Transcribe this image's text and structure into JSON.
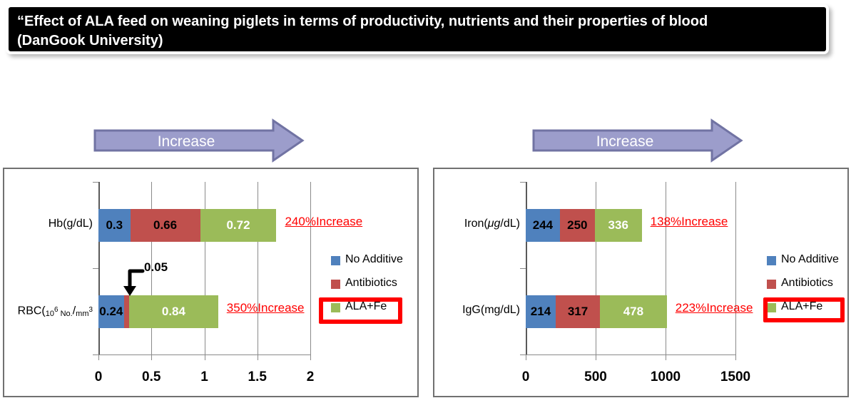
{
  "slide_title": {
    "line1": "“Effect of ALA feed on weaning piglets in terms of productivity, nutrients and their properties of blood",
    "line2": "(DanGook University)"
  },
  "increase_arrow_label": "Increase",
  "colors": {
    "no_additive_blue": "#4F81BD",
    "antibiotics_red": "#C0504D",
    "ala_fe_green": "#9BBB59",
    "callout_red": "#FF0000",
    "arrow_fill": "#9C9DCB",
    "arrow_stroke": "#7173A3"
  },
  "legend": {
    "items": [
      {
        "label": "No Additive",
        "color": "#4F81BD",
        "highlighted": false
      },
      {
        "label": "Antibiotics",
        "color": "#C0504D",
        "highlighted": false
      },
      {
        "label": "ALA+Fe",
        "color": "#9BBB59",
        "highlighted": true
      }
    ]
  },
  "chart_data": [
    {
      "type": "bar",
      "orientation": "horizontal-stacked",
      "categories": [
        "Hb(g/dL)",
        "RBC(10⁶ No./mm³"
      ],
      "categories_rich": [
        [
          {
            "t": "Hb(g/dL)"
          }
        ],
        [
          {
            "t": "RBC("
          },
          {
            "t": "10",
            "small": true
          },
          {
            "t": "6",
            "small": true,
            "sup": true
          },
          {
            "t": " No.",
            "small": true
          },
          {
            "t": "/"
          },
          {
            "t": "mm",
            "small": true
          },
          {
            "t": "3",
            "small": true,
            "sup": true
          }
        ]
      ],
      "series": [
        {
          "name": "No Additive",
          "color": "#4F81BD",
          "value_label_color": "#000000",
          "values": [
            0.3,
            0.24
          ]
        },
        {
          "name": "Antibiotics",
          "color": "#C0504D",
          "value_label_color": "#000000",
          "values": [
            0.66,
            0.05
          ]
        },
        {
          "name": "ALA+Fe",
          "color": "#9BBB59",
          "value_label_color": "#FFFFFF",
          "values": [
            0.72,
            0.84
          ]
        }
      ],
      "x_ticks": [
        "0",
        "0.5",
        "1",
        "1.5",
        "2"
      ],
      "x_tick_values": [
        0,
        0.5,
        1,
        1.5,
        2
      ],
      "xlim": [
        0,
        2
      ],
      "grid": true,
      "legend_position": "right",
      "row_callouts": [
        "240%Increase",
        "350%Increase"
      ],
      "annotations": [
        {
          "text": "0.05",
          "refers_to": "Antibiotics segment of RBC row"
        }
      ]
    },
    {
      "type": "bar",
      "orientation": "horizontal-stacked",
      "categories": [
        "Iron(μg/dL)",
        "IgG(mg/dL)"
      ],
      "categories_rich": [
        [
          {
            "t": "Iron("
          },
          {
            "t": "μg",
            "i": true
          },
          {
            "t": "/dL)"
          }
        ],
        [
          {
            "t": "IgG(mg/dL)"
          }
        ]
      ],
      "series": [
        {
          "name": "No Additive",
          "color": "#4F81BD",
          "value_label_color": "#000000",
          "values": [
            244,
            214
          ]
        },
        {
          "name": "Antibiotics",
          "color": "#C0504D",
          "value_label_color": "#000000",
          "values": [
            250,
            317
          ]
        },
        {
          "name": "ALA+Fe",
          "color": "#9BBB59",
          "value_label_color": "#FFFFFF",
          "values": [
            336,
            478
          ]
        }
      ],
      "x_ticks": [
        "0",
        "500",
        "1000",
        "1500"
      ],
      "x_tick_values": [
        0,
        500,
        1000,
        1500
      ],
      "xlim": [
        0,
        1500
      ],
      "grid": true,
      "legend_position": "right",
      "row_callouts": [
        "138%Increase",
        "223%Increase"
      ],
      "annotations": []
    }
  ]
}
